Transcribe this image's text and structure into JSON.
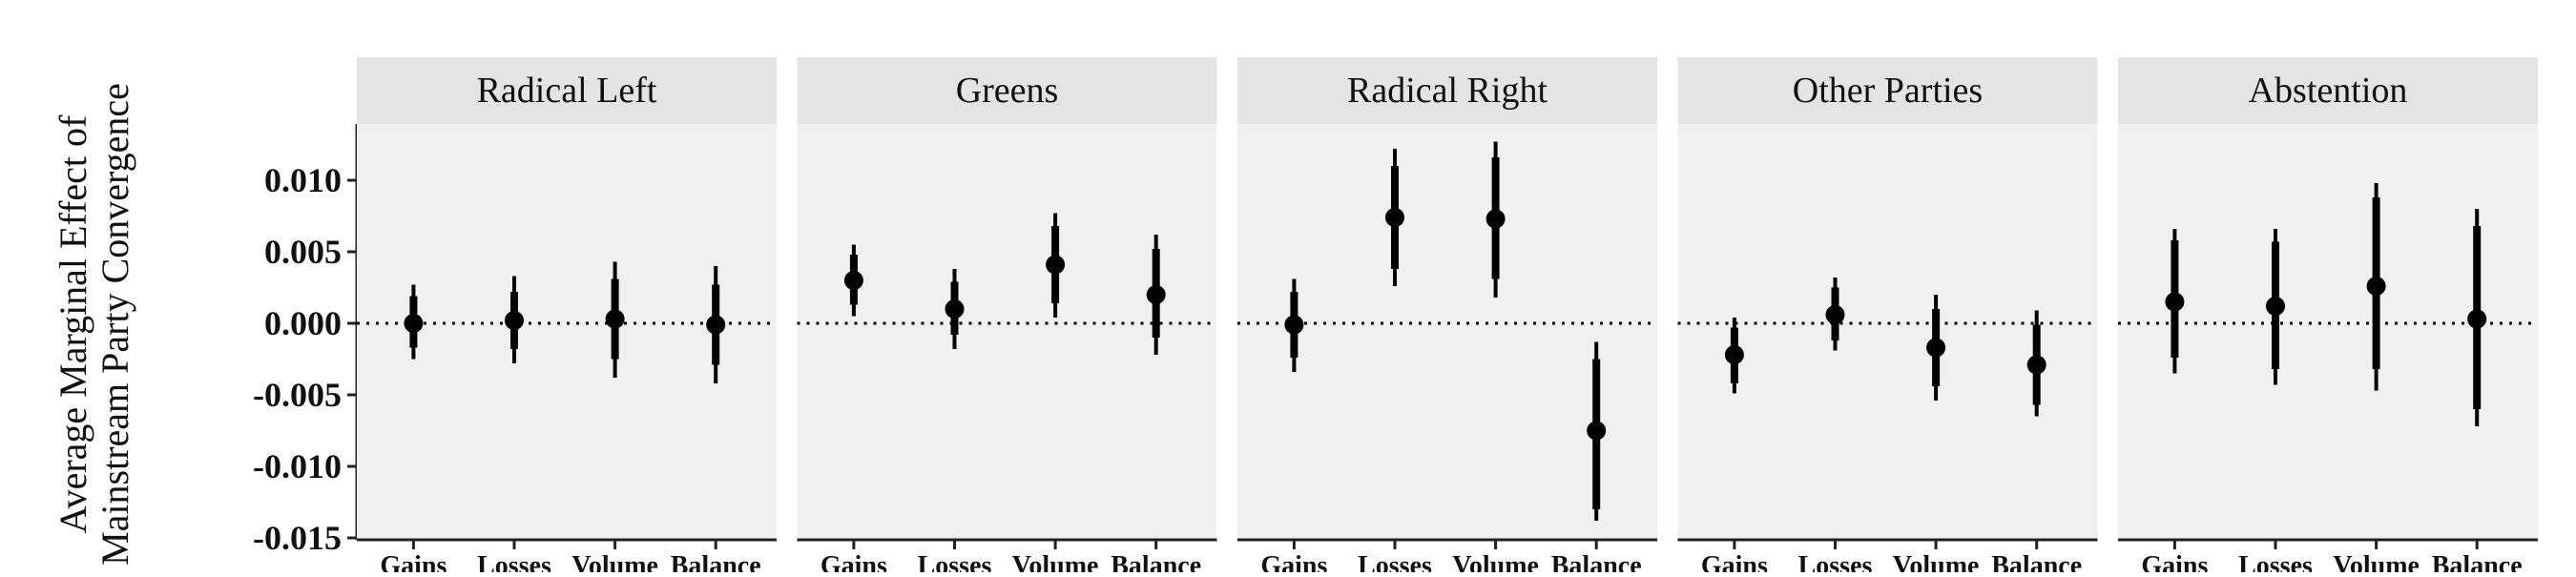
{
  "chart_data": {
    "type": "scatter",
    "ylabel_lines": [
      "Average Marginal Effect of",
      "Mainstream Party Convergence"
    ],
    "xlabel": "",
    "categories": [
      "Gains",
      "Losses",
      "Volume",
      "Balance"
    ],
    "ylim": [
      -0.0155,
      0.0135
    ],
    "yticks": [
      0.01,
      0.005,
      0.0,
      -0.005,
      -0.01,
      -0.015
    ],
    "ytick_labels": [
      "0.010",
      "0.005",
      "0.000",
      "-0.005",
      "-0.010",
      "-0.015"
    ],
    "reference_line": 0.0,
    "grid": false,
    "colors": {
      "panel_bg": "#f0f0f0",
      "strip_bg": "#e4e4e4",
      "mark": "#000000"
    },
    "panels": [
      {
        "title": "Radical Left",
        "estimates": [
          0.0,
          0.0002,
          0.0003,
          -0.0001
        ],
        "ci90": [
          [
            -0.0017,
            0.0019
          ],
          [
            -0.0018,
            0.0022
          ],
          [
            -0.0025,
            0.0031
          ],
          [
            -0.0029,
            0.0027
          ]
        ],
        "ci95": [
          [
            -0.0025,
            0.0027
          ],
          [
            -0.0028,
            0.0033
          ],
          [
            -0.0038,
            0.0043
          ],
          [
            -0.0042,
            0.004
          ]
        ]
      },
      {
        "title": "Greens",
        "estimates": [
          0.003,
          0.001,
          0.0041,
          0.002
        ],
        "ci90": [
          [
            0.0013,
            0.0048
          ],
          [
            -0.0008,
            0.0029
          ],
          [
            0.0014,
            0.0068
          ],
          [
            -0.001,
            0.0052
          ]
        ],
        "ci95": [
          [
            0.0005,
            0.0055
          ],
          [
            -0.0018,
            0.0038
          ],
          [
            0.0004,
            0.0077
          ],
          [
            -0.0022,
            0.0062
          ]
        ]
      },
      {
        "title": "Radical Right",
        "estimates": [
          -0.0001,
          0.0074,
          0.0073,
          -0.0075
        ],
        "ci90": [
          [
            -0.0024,
            0.0022
          ],
          [
            0.0038,
            0.011
          ],
          [
            0.0031,
            0.0116
          ],
          [
            -0.013,
            -0.0025
          ]
        ],
        "ci95": [
          [
            -0.0034,
            0.0031
          ],
          [
            0.0026,
            0.0122
          ],
          [
            0.0018,
            0.0127
          ],
          [
            -0.0138,
            -0.0013
          ]
        ]
      },
      {
        "title": "Other Parties",
        "estimates": [
          -0.0022,
          0.0006,
          -0.0017,
          -0.0029
        ],
        "ci90": [
          [
            -0.0042,
            -0.0003
          ],
          [
            -0.0012,
            0.0025
          ],
          [
            -0.0044,
            0.001
          ],
          [
            -0.0057,
            -0.0001
          ]
        ],
        "ci95": [
          [
            -0.0049,
            0.0004
          ],
          [
            -0.0019,
            0.0032
          ],
          [
            -0.0054,
            0.002
          ],
          [
            -0.0065,
            0.0009
          ]
        ]
      },
      {
        "title": "Abstention",
        "estimates": [
          0.0015,
          0.0012,
          0.0026,
          0.0003
        ],
        "ci90": [
          [
            -0.0024,
            0.0058
          ],
          [
            -0.0032,
            0.0057
          ],
          [
            -0.0032,
            0.0088
          ],
          [
            -0.006,
            0.0068
          ]
        ],
        "ci95": [
          [
            -0.0035,
            0.0066
          ],
          [
            -0.0043,
            0.0066
          ],
          [
            -0.0047,
            0.0098
          ],
          [
            -0.0072,
            0.008
          ]
        ]
      }
    ]
  }
}
